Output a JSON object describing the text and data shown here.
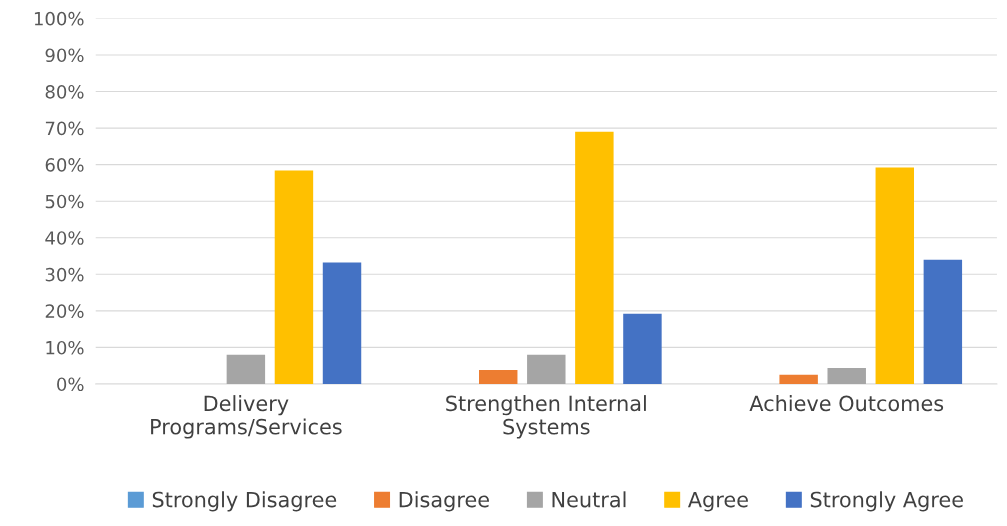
{
  "chart_data": {
    "type": "bar",
    "categories": [
      "Delivery\nPrograms/Services",
      "Strengthen Internal\nSystems",
      "Achieve Outcomes"
    ],
    "series": [
      {
        "name": "Strongly Disagree",
        "color": "#5b9bd5",
        "values": [
          0,
          0,
          0
        ]
      },
      {
        "name": "Disagree",
        "color": "#ed7d31",
        "values": [
          0,
          3.8,
          2.5
        ]
      },
      {
        "name": "Neutral",
        "color": "#a5a5a5",
        "values": [
          8,
          8,
          4.4
        ]
      },
      {
        "name": "Agree",
        "color": "#ffc000",
        "values": [
          58.4,
          69,
          59.2
        ]
      },
      {
        "name": "Strongly Agree",
        "color": "#4472c4",
        "values": [
          33.2,
          19.2,
          34
        ]
      }
    ],
    "ylim": [
      0,
      100
    ],
    "yticks": [
      {
        "value": 0,
        "label": "0%"
      },
      {
        "value": 10,
        "label": "10%"
      },
      {
        "value": 20,
        "label": "20%"
      },
      {
        "value": 30,
        "label": "30%"
      },
      {
        "value": 40,
        "label": "40%"
      },
      {
        "value": 50,
        "label": "50%"
      },
      {
        "value": 60,
        "label": "60%"
      },
      {
        "value": 70,
        "label": "70%"
      },
      {
        "value": 80,
        "label": "80%"
      },
      {
        "value": 90,
        "label": "90%"
      },
      {
        "value": 100,
        "label": "100%"
      }
    ],
    "grid": "y",
    "legend": "bottom"
  }
}
